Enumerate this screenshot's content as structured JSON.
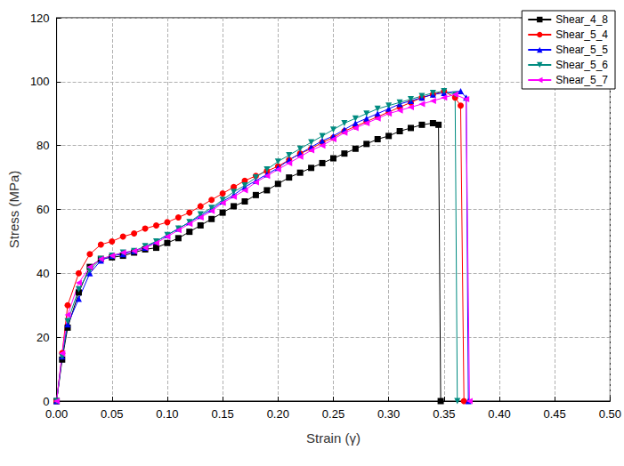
{
  "chart_data": {
    "type": "line",
    "x_label": "Strain (γ)",
    "y_label": "Stress (MPa)",
    "xlim": [
      0,
      0.5
    ],
    "xticks": [
      {
        "value": 0,
        "label": "0.00"
      },
      {
        "value": 0.05,
        "label": "0.05"
      },
      {
        "value": 0.1,
        "label": "0.10"
      },
      {
        "value": 0.15,
        "label": "0.15"
      },
      {
        "value": 0.2,
        "label": "0.20"
      },
      {
        "value": 0.25,
        "label": "0.25"
      },
      {
        "value": 0.3,
        "label": "0.30"
      },
      {
        "value": 0.35,
        "label": "0.35"
      },
      {
        "value": 0.4,
        "label": "0.40"
      },
      {
        "value": 0.45,
        "label": "0.45"
      },
      {
        "value": 0.5,
        "label": "0.50"
      }
    ],
    "ylim": [
      0,
      120
    ],
    "yticks": [
      0,
      20,
      40,
      60,
      80,
      100,
      120
    ],
    "grid": true,
    "legend": "top-right",
    "series": [
      {
        "name": "Shear_4_8",
        "color": "#000000",
        "marker": "square",
        "x": [
          0,
          0.005,
          0.01,
          0.02,
          0.03,
          0.04,
          0.05,
          0.06,
          0.07,
          0.08,
          0.09,
          0.1,
          0.11,
          0.12,
          0.13,
          0.14,
          0.15,
          0.16,
          0.17,
          0.18,
          0.19,
          0.2,
          0.21,
          0.22,
          0.23,
          0.24,
          0.25,
          0.26,
          0.27,
          0.28,
          0.29,
          0.3,
          0.31,
          0.32,
          0.33,
          0.34,
          0.345,
          0.347
        ],
        "values": [
          0,
          13,
          23,
          34,
          42,
          44.5,
          45,
          45.5,
          46.5,
          47.5,
          48,
          49.5,
          51,
          53,
          55,
          57,
          59,
          61,
          62.5,
          64.5,
          66,
          68,
          70,
          71.5,
          73,
          74.5,
          76,
          77.5,
          79,
          80.5,
          82,
          83,
          84.5,
          85.5,
          86.5,
          87,
          86.5,
          0
        ]
      },
      {
        "name": "Shear_5_4",
        "color": "#ff0000",
        "marker": "circle",
        "x": [
          0,
          0.005,
          0.01,
          0.02,
          0.03,
          0.04,
          0.05,
          0.06,
          0.07,
          0.08,
          0.09,
          0.1,
          0.11,
          0.12,
          0.13,
          0.14,
          0.15,
          0.16,
          0.17,
          0.18,
          0.19,
          0.2,
          0.21,
          0.22,
          0.23,
          0.24,
          0.25,
          0.26,
          0.27,
          0.28,
          0.29,
          0.3,
          0.31,
          0.32,
          0.33,
          0.34,
          0.35,
          0.36,
          0.365,
          0.368
        ],
        "values": [
          0,
          15,
          30,
          40,
          46,
          49,
          50,
          51.5,
          52.5,
          54,
          55,
          56,
          57.5,
          59,
          61,
          63,
          65,
          67,
          69,
          70.5,
          72,
          73.5,
          75.5,
          77.5,
          79,
          81,
          82.5,
          84.5,
          86,
          87.5,
          89,
          90.5,
          92,
          93.5,
          95,
          96,
          97,
          95,
          92.5,
          0
        ]
      },
      {
        "name": "Shear_5_5",
        "color": "#0000ff",
        "marker": "triangle",
        "x": [
          0,
          0.005,
          0.01,
          0.02,
          0.03,
          0.04,
          0.05,
          0.06,
          0.07,
          0.08,
          0.09,
          0.1,
          0.11,
          0.12,
          0.13,
          0.14,
          0.15,
          0.16,
          0.17,
          0.18,
          0.19,
          0.2,
          0.21,
          0.22,
          0.23,
          0.24,
          0.25,
          0.26,
          0.27,
          0.28,
          0.29,
          0.3,
          0.31,
          0.32,
          0.33,
          0.34,
          0.35,
          0.365,
          0.37,
          0.372
        ],
        "values": [
          0,
          14,
          24,
          32,
          40,
          44,
          45.5,
          46,
          47,
          48,
          50,
          52,
          54,
          56,
          58,
          60,
          62.5,
          64.5,
          67,
          69,
          71,
          73,
          75.5,
          77.5,
          79.5,
          81.5,
          83,
          85,
          87,
          88.5,
          90,
          91.5,
          93,
          94,
          95,
          96,
          96.5,
          97,
          95,
          0
        ]
      },
      {
        "name": "Shear_5_6",
        "color": "#008b80",
        "marker": "triangle-down",
        "x": [
          0,
          0.005,
          0.01,
          0.02,
          0.03,
          0.04,
          0.05,
          0.06,
          0.07,
          0.08,
          0.09,
          0.1,
          0.11,
          0.12,
          0.13,
          0.14,
          0.15,
          0.16,
          0.17,
          0.18,
          0.19,
          0.2,
          0.21,
          0.22,
          0.23,
          0.24,
          0.25,
          0.26,
          0.27,
          0.28,
          0.29,
          0.3,
          0.31,
          0.32,
          0.33,
          0.34,
          0.35,
          0.36,
          0.362
        ],
        "values": [
          0,
          14,
          25,
          35,
          41,
          44.5,
          45.5,
          46.5,
          47,
          48.5,
          50,
          52,
          54,
          56,
          58.5,
          60.5,
          63,
          65.5,
          67.5,
          70,
          72.5,
          75,
          77,
          79,
          81,
          83,
          85,
          87,
          88.5,
          90,
          91.5,
          92.5,
          93.5,
          94.5,
          95.5,
          96.5,
          97,
          96,
          0
        ]
      },
      {
        "name": "Shear_5_7",
        "color": "#ff00ff",
        "marker": "triangle-left",
        "x": [
          0,
          0.005,
          0.01,
          0.02,
          0.03,
          0.04,
          0.05,
          0.06,
          0.07,
          0.08,
          0.09,
          0.1,
          0.11,
          0.12,
          0.13,
          0.14,
          0.15,
          0.16,
          0.17,
          0.18,
          0.19,
          0.2,
          0.21,
          0.22,
          0.23,
          0.24,
          0.25,
          0.26,
          0.27,
          0.28,
          0.29,
          0.3,
          0.31,
          0.32,
          0.33,
          0.34,
          0.35,
          0.36,
          0.37,
          0.373
        ],
        "values": [
          0,
          15,
          27,
          37,
          42,
          44.5,
          45.5,
          46.5,
          47,
          48,
          49.5,
          51.5,
          53.5,
          55.5,
          57.5,
          59.5,
          62,
          64,
          66,
          68.5,
          70.5,
          72.5,
          74.5,
          76.5,
          78.5,
          80,
          82,
          84,
          85.5,
          87,
          88.5,
          90,
          91,
          92,
          93,
          94,
          95,
          96,
          94.5,
          0
        ]
      }
    ]
  }
}
